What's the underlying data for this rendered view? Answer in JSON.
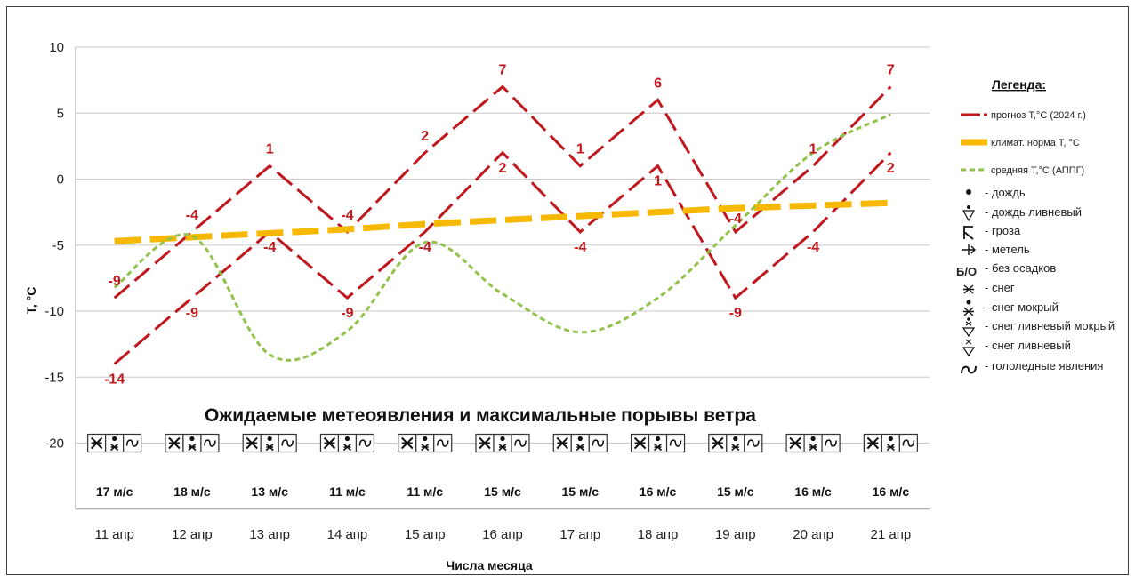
{
  "chart_data": {
    "type": "line",
    "ylabel": "Т, °С",
    "xlabel": "Числа месяца",
    "ylim": [
      -25,
      10
    ],
    "yticks": [
      10,
      5,
      0,
      -5,
      -10,
      -15,
      -20
    ],
    "grid": true,
    "categories": [
      "11 апр",
      "12 апр",
      "13 апр",
      "14 апр",
      "15 апр",
      "16 апр",
      "17 апр",
      "18 апр",
      "19 апр",
      "20 апр",
      "21 апр"
    ],
    "series": [
      {
        "name": "прогноз Т,°С (2024 г.) max",
        "values": [
          -9,
          -4,
          1,
          -4,
          2,
          7,
          1,
          6,
          -4,
          1,
          7
        ],
        "color": "#c0181e",
        "style": "dashed"
      },
      {
        "name": "прогноз Т,°С (2024 г.) min",
        "values": [
          -14,
          -9,
          -4,
          -9,
          -4,
          2,
          -4,
          1,
          -9,
          -4,
          2
        ],
        "color": "#c0181e",
        "style": "dashed"
      },
      {
        "name": "климат. норма Т, °С",
        "values": [
          -4.7,
          -4.4,
          -4.1,
          -3.8,
          -3.4,
          -3.1,
          -2.8,
          -2.5,
          -2.2,
          -2.0,
          -1.8
        ],
        "color": "#f6b800",
        "style": "thick-dashed"
      },
      {
        "name": "средняя Т,°С (АППГ)",
        "values": [
          -8.2,
          -4.3,
          -13.3,
          -11.5,
          -4.8,
          -8.7,
          -11.6,
          -9.0,
          -3.5,
          2.0,
          4.9
        ],
        "color": "#92c24b",
        "style": "dotted"
      }
    ],
    "caption": "Ожидаемые метеоявления и максимальные порывы ветра",
    "wind": [
      "17 м/с",
      "18 м/с",
      "13 м/с",
      "11 м/с",
      "11 м/с",
      "15 м/с",
      "15 м/с",
      "16 м/с",
      "15 м/с",
      "16 м/с",
      "16 м/с"
    ],
    "phenomena_icons": [
      "snow-icon",
      "wet-snow-icon",
      "ice-icon"
    ],
    "legend": {
      "title": "Легенда:",
      "lines": [
        "прогноз Т,°С (2024 г.)",
        "климат. норма Т, °С",
        "средняя Т,°С (АППГ)"
      ],
      "symbols": [
        {
          "icon": "rain-icon",
          "glyph": "•",
          "label": "- дождь"
        },
        {
          "icon": "shower-rain-icon",
          "glyph": "∇̇",
          "label": "- дождь ливневый"
        },
        {
          "icon": "thunderstorm-icon",
          "glyph": "ꓘ",
          "label": "- гроза"
        },
        {
          "icon": "blizzard-icon",
          "glyph": "⟶",
          "label": "- метель"
        },
        {
          "icon": "no-precipitation-icon",
          "glyph": "Б/О",
          "label": "- без осадков"
        },
        {
          "icon": "snow-icon",
          "glyph": "✱",
          "label": "- снег"
        },
        {
          "icon": "wet-snow-icon",
          "glyph": "•✱",
          "label": "- снег мокрый"
        },
        {
          "icon": "shower-wet-snow-icon",
          "glyph": "∇",
          "label": "- снег ливневый мокрый"
        },
        {
          "icon": "shower-snow-icon",
          "glyph": "∇",
          "label": "- снег ливневый"
        },
        {
          "icon": "ice-icon",
          "glyph": "∼",
          "label": "- гололедные явления"
        }
      ]
    }
  }
}
